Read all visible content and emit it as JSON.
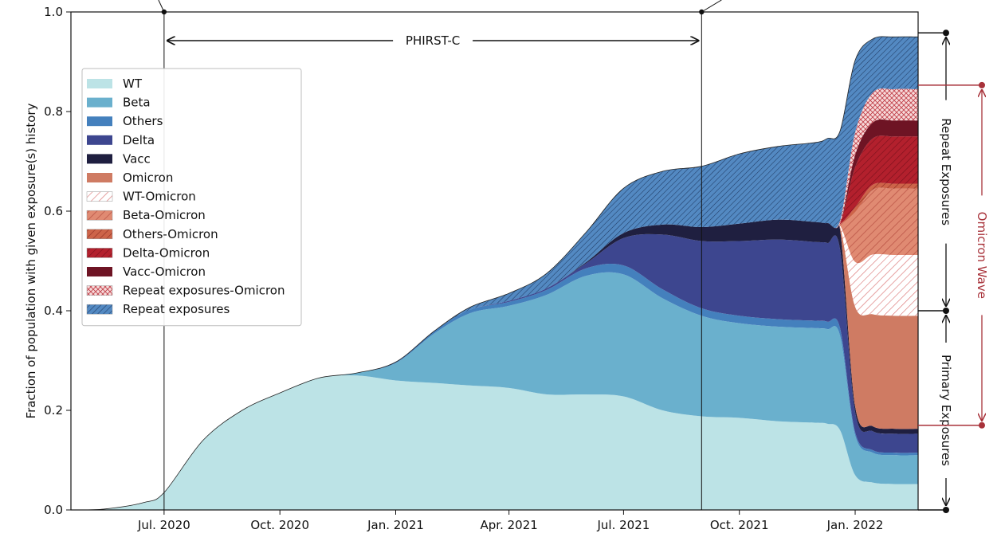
{
  "chart_data": {
    "type": "area",
    "ylabel": "Fraction of population with given exposure(s) history",
    "xlabel": "",
    "ylim": [
      0,
      1.0
    ],
    "xlim": [
      "2020-04-18",
      "2022-02-20"
    ],
    "y_ticks": [
      "0.0",
      "0.2",
      "0.4",
      "0.6",
      "0.8",
      "1.0"
    ],
    "y_tick_values": [
      0.0,
      0.2,
      0.4,
      0.6,
      0.8,
      1.0
    ],
    "x_ticks": [
      "Jul. 2020",
      "Oct. 2020",
      "Jan. 2021",
      "Apr. 2021",
      "Jul. 2021",
      "Oct. 2021",
      "Jan. 2022"
    ],
    "x_tick_values": [
      "2020-07-01",
      "2020-10-01",
      "2021-01-01",
      "2021-04-01",
      "2021-07-01",
      "2021-10-01",
      "2022-01-01"
    ],
    "grid": false,
    "legend_position": "upper-left",
    "x": [
      "2020-04-18",
      "2020-05-15",
      "2020-06-15",
      "2020-07-01",
      "2020-08-01",
      "2020-09-01",
      "2020-10-01",
      "2020-11-01",
      "2020-12-01",
      "2021-01-01",
      "2021-02-01",
      "2021-03-01",
      "2021-04-01",
      "2021-05-01",
      "2021-06-01",
      "2021-07-01",
      "2021-08-01",
      "2021-09-01",
      "2021-10-01",
      "2021-11-01",
      "2021-12-01",
      "2021-12-10",
      "2021-12-20",
      "2022-01-01",
      "2022-01-15",
      "2022-02-01",
      "2022-02-20"
    ],
    "series": [
      {
        "name": "WT",
        "color": "#bce3e6",
        "pattern": "none",
        "values": [
          0,
          0.002,
          0.015,
          0.035,
          0.14,
          0.2,
          0.235,
          0.265,
          0.27,
          0.26,
          0.255,
          0.25,
          0.245,
          0.232,
          0.232,
          0.228,
          0.2,
          0.188,
          0.185,
          0.178,
          0.175,
          0.173,
          0.16,
          0.07,
          0.055,
          0.052,
          0.052
        ]
      },
      {
        "name": "Beta",
        "color": "#6ab0cd",
        "pattern": "none",
        "values": [
          0,
          0,
          0,
          0,
          0,
          0,
          0,
          0,
          0.005,
          0.035,
          0.1,
          0.145,
          0.165,
          0.2,
          0.238,
          0.245,
          0.225,
          0.202,
          0.19,
          0.19,
          0.19,
          0.19,
          0.19,
          0.08,
          0.06,
          0.058,
          0.058
        ]
      },
      {
        "name": "Others",
        "color": "#4480bd",
        "pattern": "none",
        "values": [
          0,
          0,
          0,
          0,
          0,
          0,
          0,
          0,
          0,
          0.002,
          0.005,
          0.007,
          0.008,
          0.01,
          0.015,
          0.018,
          0.018,
          0.015,
          0.015,
          0.015,
          0.015,
          0.015,
          0.015,
          0.006,
          0.005,
          0.005,
          0.005
        ]
      },
      {
        "name": "Delta",
        "color": "#3d468f",
        "pattern": "none",
        "values": [
          0,
          0,
          0,
          0,
          0,
          0,
          0,
          0,
          0,
          0,
          0,
          0,
          0.002,
          0.003,
          0.01,
          0.055,
          0.11,
          0.135,
          0.15,
          0.16,
          0.158,
          0.158,
          0.158,
          0.04,
          0.038,
          0.038,
          0.038
        ]
      },
      {
        "name": "Vacc",
        "color": "#1f1f40",
        "pattern": "none",
        "values": [
          0,
          0,
          0,
          0,
          0,
          0,
          0,
          0,
          0,
          0,
          0,
          0,
          0,
          0,
          0.002,
          0.01,
          0.02,
          0.028,
          0.035,
          0.04,
          0.04,
          0.04,
          0.04,
          0.012,
          0.01,
          0.01,
          0.01
        ]
      },
      {
        "name": "Omicron",
        "color": "#cf7b63",
        "pattern": "none",
        "values": [
          0,
          0,
          0,
          0,
          0,
          0,
          0,
          0,
          0,
          0,
          0,
          0,
          0,
          0,
          0,
          0,
          0,
          0,
          0,
          0,
          0,
          0,
          0.005,
          0.2,
          0.225,
          0.227,
          0.227
        ]
      },
      {
        "name": "WT-Omicron",
        "color": "#ffffff",
        "pattern": "hatch-wt",
        "values": [
          0,
          0,
          0,
          0,
          0,
          0,
          0,
          0,
          0,
          0,
          0,
          0,
          0,
          0,
          0,
          0,
          0,
          0,
          0,
          0,
          0,
          0,
          0.003,
          0.09,
          0.12,
          0.122,
          0.122
        ]
      },
      {
        "name": "Beta-Omicron",
        "color": "#d9866c",
        "pattern": "hatch-beta",
        "values": [
          0,
          0,
          0,
          0,
          0,
          0,
          0,
          0,
          0,
          0,
          0,
          0,
          0,
          0,
          0,
          0,
          0,
          0,
          0,
          0,
          0,
          0,
          0.003,
          0.1,
          0.13,
          0.133,
          0.133
        ]
      },
      {
        "name": "Others-Omicron",
        "color": "#c96046",
        "pattern": "hatch-others",
        "values": [
          0,
          0,
          0,
          0,
          0,
          0,
          0,
          0,
          0,
          0,
          0,
          0,
          0,
          0,
          0,
          0,
          0,
          0,
          0,
          0,
          0,
          0,
          0,
          0.01,
          0.01,
          0.01,
          0.01
        ]
      },
      {
        "name": "Delta-Omicron",
        "color": "#b0202c",
        "pattern": "hatch-delta",
        "values": [
          0,
          0,
          0,
          0,
          0,
          0,
          0,
          0,
          0,
          0,
          0,
          0,
          0,
          0,
          0,
          0,
          0,
          0,
          0,
          0,
          0,
          0,
          0.002,
          0.08,
          0.093,
          0.095,
          0.095
        ]
      },
      {
        "name": "Vacc-Omicron",
        "color": "#6e1424",
        "pattern": "none",
        "values": [
          0,
          0,
          0,
          0,
          0,
          0,
          0,
          0,
          0,
          0,
          0,
          0,
          0,
          0,
          0,
          0,
          0,
          0,
          0,
          0,
          0,
          0,
          0,
          0.025,
          0.032,
          0.032,
          0.032
        ]
      },
      {
        "name": "Repeat exposures-Omicron",
        "color": "#f4d6d6",
        "pattern": "cross-rep-omi",
        "values": [
          0,
          0,
          0,
          0,
          0,
          0,
          0,
          0,
          0,
          0,
          0,
          0,
          0,
          0,
          0,
          0,
          0,
          0,
          0,
          0,
          0,
          0,
          0.005,
          0.045,
          0.06,
          0.063,
          0.063
        ]
      },
      {
        "name": "Repeat exposures",
        "color": "#4f86c0",
        "pattern": "hatch-repeat",
        "values": [
          0,
          0,
          0,
          0,
          0,
          0,
          0,
          0,
          0,
          0,
          0,
          0.005,
          0.015,
          0.03,
          0.06,
          0.09,
          0.107,
          0.122,
          0.14,
          0.147,
          0.16,
          0.17,
          0.18,
          0.145,
          0.108,
          0.105,
          0.105
        ]
      }
    ],
    "annotations": {
      "phirst_label": "PHIRST-C",
      "phirst_start": "2020-07-01",
      "phirst_end": "2021-09-01",
      "repeat_label": "Repeat Exposures",
      "primary_label": "Primary Exposures",
      "omicron_label": "Omicron Wave",
      "repeat_range": [
        0.4,
        0.958
      ],
      "primary_range": [
        0,
        0.4
      ],
      "omicron_range": [
        0.17,
        0.853
      ],
      "omicron_color": "#a8323a"
    }
  }
}
